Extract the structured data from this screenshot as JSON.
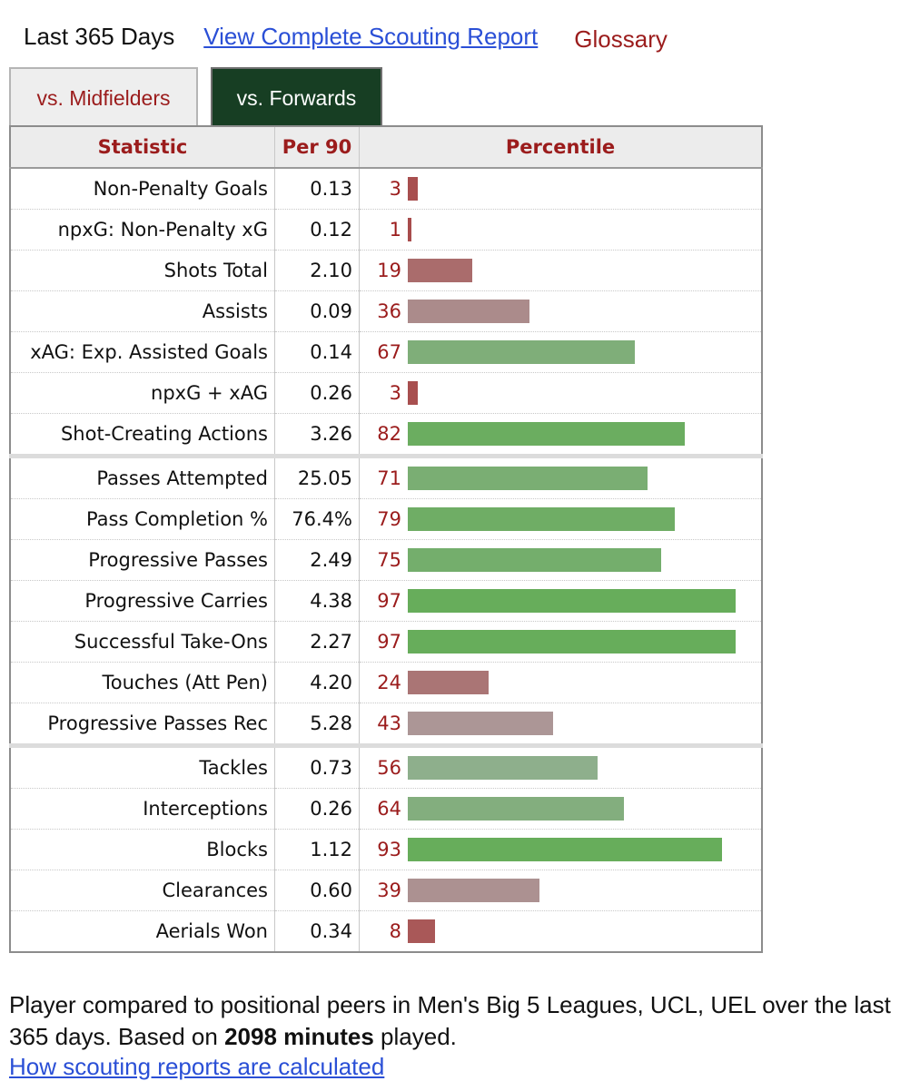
{
  "header": {
    "period": "Last 365 Days",
    "report_link": "View Complete Scouting Report",
    "glossary": "Glossary"
  },
  "tabs": [
    {
      "label": "vs. Midfielders",
      "active": false
    },
    {
      "label": "vs. Forwards",
      "active": true
    }
  ],
  "table": {
    "columns": [
      "Statistic",
      "Per 90",
      "Percentile"
    ],
    "rows": [
      {
        "stat": "Non-Penalty Goals",
        "per90": "0.13",
        "percentile": 3,
        "group_start": false
      },
      {
        "stat": "npxG: Non-Penalty xG",
        "per90": "0.12",
        "percentile": 1,
        "group_start": false
      },
      {
        "stat": "Shots Total",
        "per90": "2.10",
        "percentile": 19,
        "group_start": false
      },
      {
        "stat": "Assists",
        "per90": "0.09",
        "percentile": 36,
        "group_start": false
      },
      {
        "stat": "xAG: Exp. Assisted Goals",
        "per90": "0.14",
        "percentile": 67,
        "group_start": false
      },
      {
        "stat": "npxG + xAG",
        "per90": "0.26",
        "percentile": 3,
        "group_start": false
      },
      {
        "stat": "Shot-Creating Actions",
        "per90": "3.26",
        "percentile": 82,
        "group_start": false
      },
      {
        "stat": "Passes Attempted",
        "per90": "25.05",
        "percentile": 71,
        "group_start": true
      },
      {
        "stat": "Pass Completion %",
        "per90": "76.4%",
        "percentile": 79,
        "group_start": false
      },
      {
        "stat": "Progressive Passes",
        "per90": "2.49",
        "percentile": 75,
        "group_start": false
      },
      {
        "stat": "Progressive Carries",
        "per90": "4.38",
        "percentile": 97,
        "group_start": false
      },
      {
        "stat": "Successful Take-Ons",
        "per90": "2.27",
        "percentile": 97,
        "group_start": false
      },
      {
        "stat": "Touches (Att Pen)",
        "per90": "4.20",
        "percentile": 24,
        "group_start": false
      },
      {
        "stat": "Progressive Passes Rec",
        "per90": "5.28",
        "percentile": 43,
        "group_start": false
      },
      {
        "stat": "Tackles",
        "per90": "0.73",
        "percentile": 56,
        "group_start": true
      },
      {
        "stat": "Interceptions",
        "per90": "0.26",
        "percentile": 64,
        "group_start": false
      },
      {
        "stat": "Blocks",
        "per90": "1.12",
        "percentile": 93,
        "group_start": false
      },
      {
        "stat": "Clearances",
        "per90": "0.60",
        "percentile": 39,
        "group_start": false
      },
      {
        "stat": "Aerials Won",
        "per90": "0.34",
        "percentile": 8,
        "group_start": false
      }
    ]
  },
  "note": {
    "prefix": "Player compared to positional peers in Men's Big 5 Leagues, UCL, UEL over the last 365 days. Based on ",
    "minutes": "2098 minutes",
    "suffix": " played."
  },
  "footer_link": "How scouting reports are calculated",
  "colors": {
    "accent_red": "#9b1c1c",
    "link_blue": "#2a4fd6",
    "active_tab": "#173e23",
    "bar_low": "#a84a4a",
    "bar_high": "#67ad5b"
  }
}
